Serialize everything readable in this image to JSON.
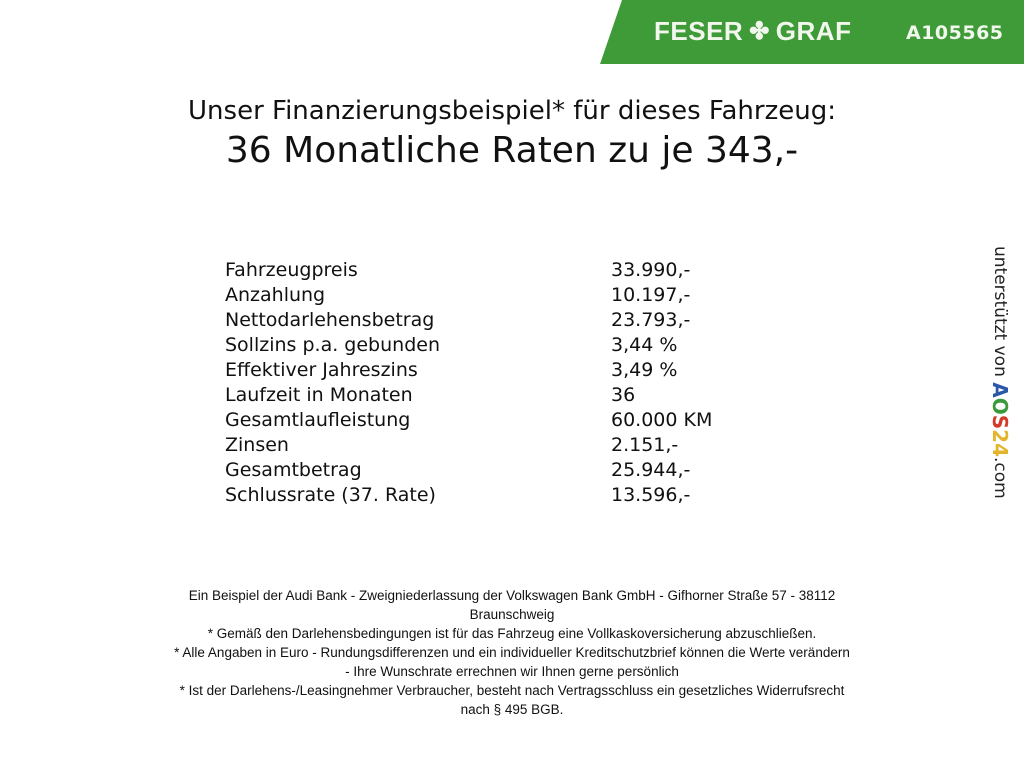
{
  "header": {
    "brand_left": "FESER",
    "brand_right": "GRAF",
    "brand_icon": "clover-icon",
    "vehicle_code": "A105565",
    "brand_color": "#3f9b38"
  },
  "title": {
    "line1": "Unser Finanzierungsbeispiel* für dieses Fahrzeug:",
    "line2": "36 Monatliche Raten zu je 343,-"
  },
  "rows": [
    {
      "label": "Fahrzeugpreis",
      "value": "33.990,-"
    },
    {
      "label": "Anzahlung",
      "value": "10.197,-"
    },
    {
      "label": "Nettodarlehensbetrag",
      "value": "23.793,-"
    },
    {
      "label": "Sollzins p.a. gebunden",
      "value": "3,44 %"
    },
    {
      "label": "Effektiver Jahreszins",
      "value": "3,49 %"
    },
    {
      "label": "Laufzeit in Monaten",
      "value": "36"
    },
    {
      "label": "Gesamtlaufleistung",
      "value": "60.000 KM"
    },
    {
      "label": "Zinsen",
      "value": "2.151,-"
    },
    {
      "label": "Gesamtbetrag",
      "value": "25.944,-"
    },
    {
      "label": "Schlussrate (37. Rate)",
      "value": "13.596,-"
    }
  ],
  "footer": {
    "lines": [
      "Ein Beispiel der Audi Bank - Zweigniederlassung der Volkswagen Bank GmbH - Gifhorner Straße 57 - 38112",
      "Braunschweig",
      "* Gemäß den Darlehensbedingungen ist für das Fahrzeug eine Vollkaskoversicherung abzuschließen.",
      "* Alle Angaben in Euro - Rundungsdifferenzen und ein individueller Kreditschutzbrief können die Werte verändern",
      "- Ihre Wunschrate errechnen wir Ihnen gerne persönlich",
      "* Ist der Darlehens-/Leasingnehmer Verbraucher, besteht nach Vertragsschluss ein gesetzliches Widerrufsrecht",
      "nach § 495 BGB."
    ]
  },
  "side": {
    "prefix": "unterstützt von ",
    "logo_a": "A",
    "logo_o": "O",
    "logo_s": "S",
    "logo_2": "2",
    "logo_4": "4",
    "suffix": ".com"
  }
}
